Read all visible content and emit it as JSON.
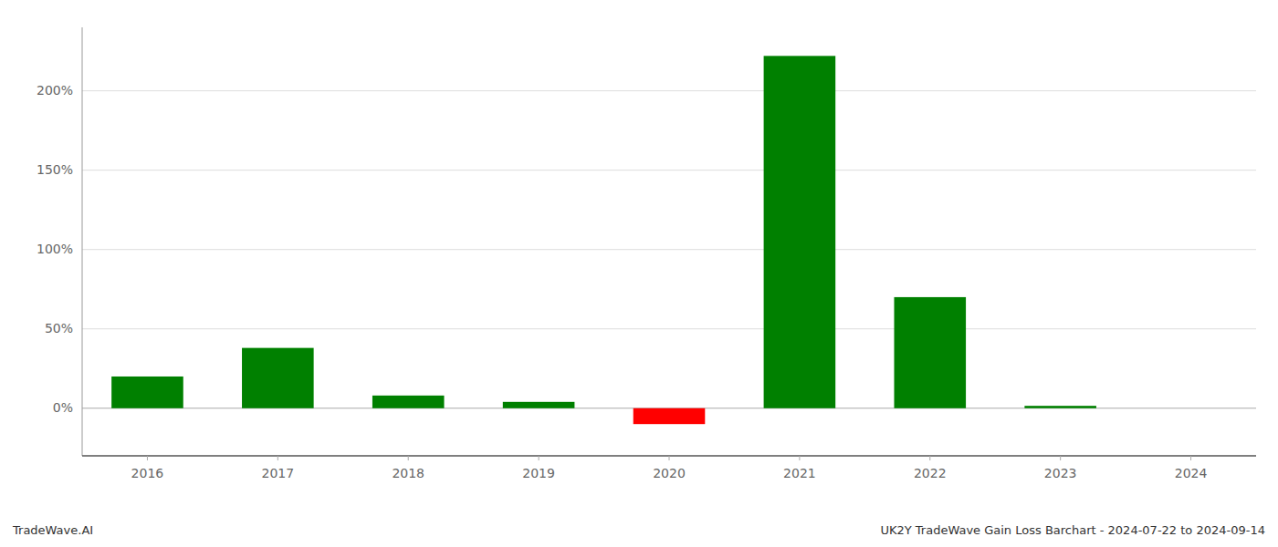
{
  "chart_data": {
    "type": "bar",
    "categories": [
      "2016",
      "2017",
      "2018",
      "2019",
      "2020",
      "2021",
      "2022",
      "2023",
      "2024"
    ],
    "values": [
      20,
      38,
      8,
      4,
      -10,
      222,
      70,
      1.5,
      0
    ],
    "colors": [
      "#008000",
      "#008000",
      "#008000",
      "#008000",
      "#ff0000",
      "#008000",
      "#008000",
      "#008000",
      "#008000"
    ],
    "ylim": [
      -30,
      240
    ],
    "yticks": [
      {
        "value": 0,
        "label": "0%"
      },
      {
        "value": 50,
        "label": "50%"
      },
      {
        "value": 100,
        "label": "100%"
      },
      {
        "value": 150,
        "label": "150%"
      },
      {
        "value": 200,
        "label": "200%"
      }
    ],
    "grid": true,
    "annotations": [
      "TradeWave.AI",
      "UK2Y TradeWave Gain Loss Barchart - 2024-07-22 to 2024-09-14"
    ]
  }
}
